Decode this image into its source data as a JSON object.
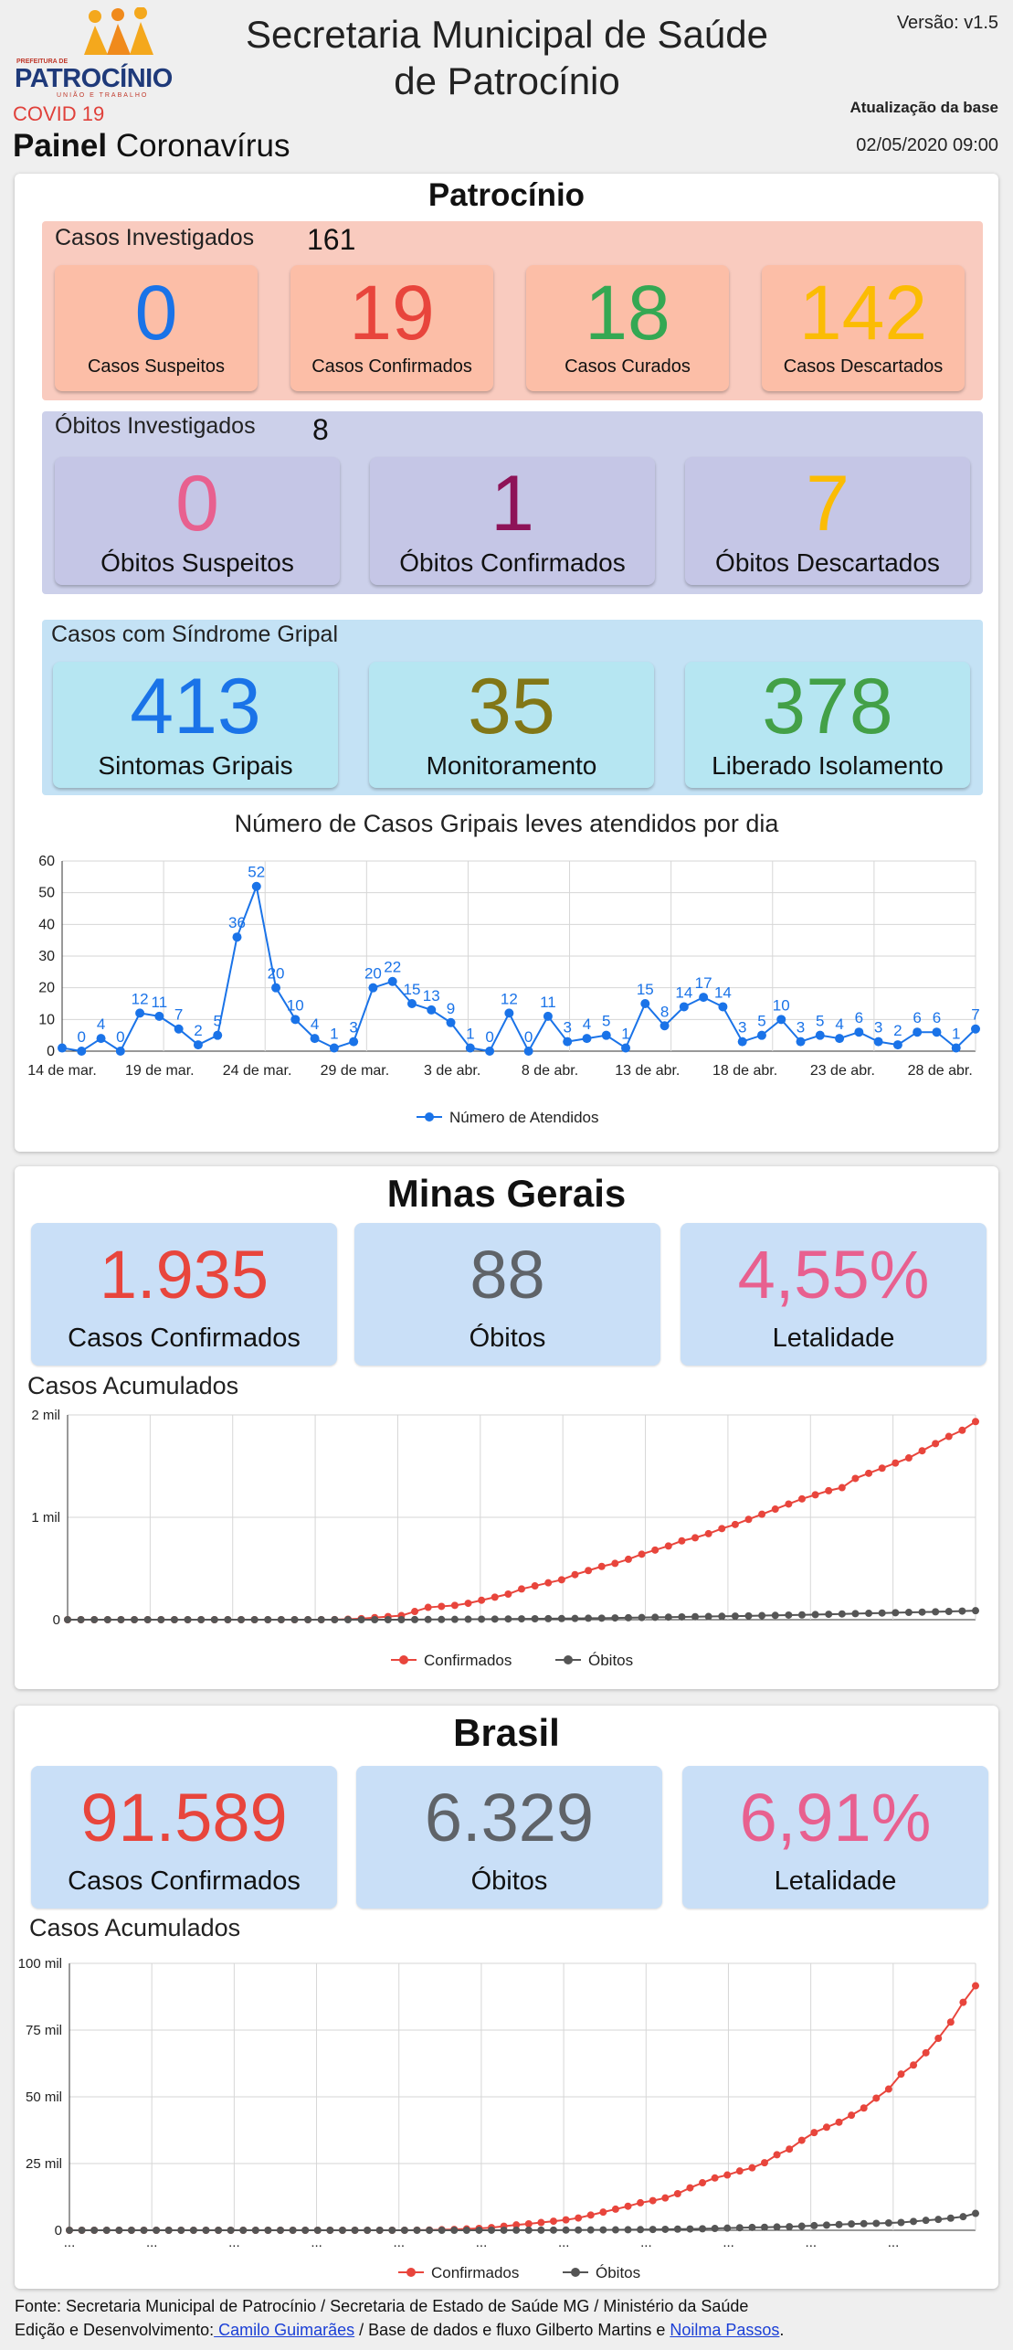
{
  "header": {
    "logo": {
      "prefix": "PREFEITURA DE",
      "name": "PATROCÍNIO",
      "tagline": "UNIÃO E TRABALHO"
    },
    "title_line1": "Secretaria Municipal de Saúde",
    "title_line2": "de Patrocínio",
    "version": "Versão: v1.5",
    "update_label": "Atualização da base",
    "update_value": "02/05/2020 09:00",
    "covid_label": "COVID 19",
    "painel_bold": "Painel",
    "painel_rest": "Coronavírus"
  },
  "patrocinio": {
    "title": "Patrocínio",
    "investigados": {
      "label": "Casos Investigados",
      "count": "161"
    },
    "cases": [
      {
        "value": "0",
        "label": "Casos Suspeitos",
        "color": "#1a73e8"
      },
      {
        "value": "19",
        "label": "Casos Confirmados",
        "color": "#e8453c"
      },
      {
        "value": "18",
        "label": "Casos Curados",
        "color": "#34a853"
      },
      {
        "value": "142",
        "label": "Casos Descartados",
        "color": "#fbbc04"
      }
    ],
    "obitos": {
      "label": "Óbitos Investigados",
      "count": "8"
    },
    "deaths": [
      {
        "value": "0",
        "label": "Óbitos Suspeitos",
        "color": "#e8608f"
      },
      {
        "value": "1",
        "label": "Óbitos Confirmados",
        "color": "#8e1358"
      },
      {
        "value": "7",
        "label": "Óbitos Descartados",
        "color": "#fbbc04"
      }
    ],
    "gripal": {
      "label": "Casos com Síndrome Gripal"
    },
    "gripal_items": [
      {
        "value": "413",
        "label": "Sintomas Gripais",
        "color": "#1a73e8"
      },
      {
        "value": "35",
        "label": "Monitoramento",
        "color": "#827717"
      },
      {
        "value": "378",
        "label": "Liberado Isolamento",
        "color": "#43a047"
      }
    ]
  },
  "chart_data": [
    {
      "type": "line",
      "title": "Número de Casos Gripais leves atendidos por dia",
      "xlabel": "",
      "ylabel": "",
      "ylim": [
        0,
        60
      ],
      "yticks": [
        "0",
        "10",
        "20",
        "30",
        "40",
        "50",
        "60"
      ],
      "xtick_labels": [
        "14 de mar.",
        "19 de mar.",
        "24 de mar.",
        "29 de mar.",
        "3 de abr.",
        "8 de abr.",
        "13 de abr.",
        "18 de abr.",
        "23 de abr.",
        "28 de abr."
      ],
      "series": [
        {
          "name": "Número de Atendidos",
          "color": "#1a73e8",
          "values": [
            1,
            0,
            4,
            0,
            12,
            11,
            7,
            2,
            5,
            36,
            52,
            20,
            10,
            4,
            1,
            3,
            20,
            22,
            15,
            13,
            9,
            1,
            0,
            12,
            0,
            11,
            3,
            4,
            5,
            1,
            15,
            8,
            14,
            17,
            14,
            3,
            5,
            10,
            3,
            5,
            4,
            6,
            3,
            2,
            6,
            6,
            1,
            7
          ],
          "labels": [
            "",
            "0",
            "4",
            "0",
            "12",
            "11",
            "7",
            "2",
            "5",
            "36",
            "52",
            "20",
            "10",
            "4",
            "1",
            "3",
            "20",
            "22",
            "15",
            "13",
            "9",
            "1",
            "0",
            "12",
            "0",
            "11",
            "3",
            "4",
            "5",
            "1",
            "15",
            "8",
            "14",
            "17",
            "14",
            "3",
            "5",
            "10",
            "3",
            "5",
            "4",
            "6",
            "3",
            "2",
            "6",
            "6",
            "1",
            "7"
          ]
        }
      ],
      "grid": true,
      "legend": "bottom"
    },
    {
      "type": "line",
      "title": "Casos Acumulados",
      "ylim": [
        0,
        2000
      ],
      "yticks": [
        "0",
        "1 mil",
        "2 mil"
      ],
      "series": [
        {
          "name": "Confirmados",
          "color": "#e8453c",
          "values": [
            0,
            0,
            0,
            0,
            0,
            0,
            0,
            0,
            0,
            0,
            0,
            0,
            0,
            0,
            0,
            0,
            0,
            0,
            0,
            0,
            1,
            5,
            10,
            20,
            30,
            40,
            80,
            120,
            130,
            140,
            160,
            190,
            220,
            250,
            300,
            330,
            360,
            390,
            440,
            480,
            520,
            550,
            590,
            640,
            680,
            720,
            770,
            800,
            840,
            890,
            930,
            980,
            1030,
            1080,
            1130,
            1180,
            1220,
            1260,
            1290,
            1380,
            1430,
            1480,
            1530,
            1580,
            1650,
            1720,
            1790,
            1850,
            1935
          ]
        },
        {
          "name": "Óbitos",
          "color": "#555555",
          "values": [
            0,
            0,
            0,
            0,
            0,
            0,
            0,
            0,
            0,
            0,
            0,
            0,
            0,
            0,
            0,
            0,
            0,
            0,
            0,
            0,
            0,
            0,
            0,
            0,
            0,
            0,
            1,
            2,
            2,
            3,
            4,
            5,
            6,
            7,
            8,
            9,
            10,
            11,
            12,
            14,
            15,
            17,
            19,
            21,
            23,
            25,
            27,
            29,
            31,
            33,
            35,
            37,
            40,
            42,
            45,
            47,
            50,
            53,
            56,
            59,
            62,
            65,
            68,
            71,
            74,
            77,
            80,
            84,
            88
          ]
        }
      ],
      "grid": true,
      "legend": "bottom"
    },
    {
      "type": "line",
      "title": "Casos Acumulados",
      "ylim": [
        0,
        100000
      ],
      "yticks": [
        "0",
        "25 mil",
        "50 mil",
        "75 mil",
        "100 mil"
      ],
      "xtick_labels": [
        "...",
        "...",
        "...",
        "...",
        "...",
        "...",
        "...",
        "...",
        "...",
        "...",
        "..."
      ],
      "series": [
        {
          "name": "Confirmados",
          "color": "#e8453c",
          "values": [
            0,
            0,
            0,
            0,
            0,
            0,
            0,
            0,
            0,
            0,
            0,
            0,
            0,
            0,
            0,
            0,
            0,
            0,
            0,
            0,
            0,
            0,
            0,
            0,
            0,
            0,
            0,
            10,
            50,
            100,
            200,
            300,
            500,
            700,
            1000,
            1500,
            2000,
            2400,
            2900,
            3400,
            3900,
            4600,
            5700,
            6800,
            7900,
            9000,
            10300,
            11100,
            12100,
            13700,
            15900,
            17800,
            19600,
            20700,
            22200,
            23400,
            25300,
            28300,
            30400,
            33700,
            36600,
            38600,
            40500,
            43100,
            45800,
            49500,
            52900,
            58500,
            61900,
            66500,
            71900,
            78000,
            85400,
            91589
          ]
        },
        {
          "name": "Óbitos",
          "color": "#555555",
          "values": [
            0,
            0,
            0,
            0,
            0,
            0,
            0,
            0,
            0,
            0,
            0,
            0,
            0,
            0,
            0,
            0,
            0,
            0,
            0,
            0,
            0,
            0,
            0,
            0,
            0,
            0,
            0,
            0,
            0,
            0,
            0,
            1,
            3,
            6,
            11,
            18,
            25,
            34,
            46,
            57,
            77,
            92,
            114,
            136,
            159,
            201,
            240,
            299,
            359,
            432,
            486,
            553,
            667,
            800,
            941,
            1056,
            1124,
            1223,
            1328,
            1532,
            1736,
            1924,
            2141,
            2354,
            2462,
            2587,
            2741,
            2906,
            3313,
            3704,
            4057,
            4543,
            5083,
            6329
          ]
        }
      ],
      "grid": true,
      "legend": "bottom"
    }
  ],
  "minas": {
    "title": "Minas Gerais",
    "stats": [
      {
        "value": "1.935",
        "label": "Casos Confirmados",
        "color": "#e8453c"
      },
      {
        "value": "88",
        "label": "Óbitos",
        "color": "#5f6368"
      },
      {
        "value": "4,55%",
        "label": "Letalidade",
        "color": "#e8608f"
      }
    ],
    "acum_label": "Casos Acumulados"
  },
  "brasil": {
    "title": "Brasil",
    "stats": [
      {
        "value": "91.589",
        "label": "Casos Confirmados",
        "color": "#e8453c"
      },
      {
        "value": "6.329",
        "label": "Óbitos",
        "color": "#5f6368"
      },
      {
        "value": "6,91%",
        "label": "Letalidade",
        "color": "#e8608f"
      }
    ],
    "acum_label": "Casos Acumulados"
  },
  "footer": {
    "line1": "Fonte: Secretaria Municipal de Patrocínio / Secretaria de Estado de Saúde MG / Ministério da Saúde",
    "line2_a": "Edição e Desenvolvimento:",
    "link1": " Camilo Guimarães",
    "line2_b": " / Base de dados e fluxo Gilberto Martins e ",
    "link2": "Noilma Passos",
    "line2_c": "."
  }
}
